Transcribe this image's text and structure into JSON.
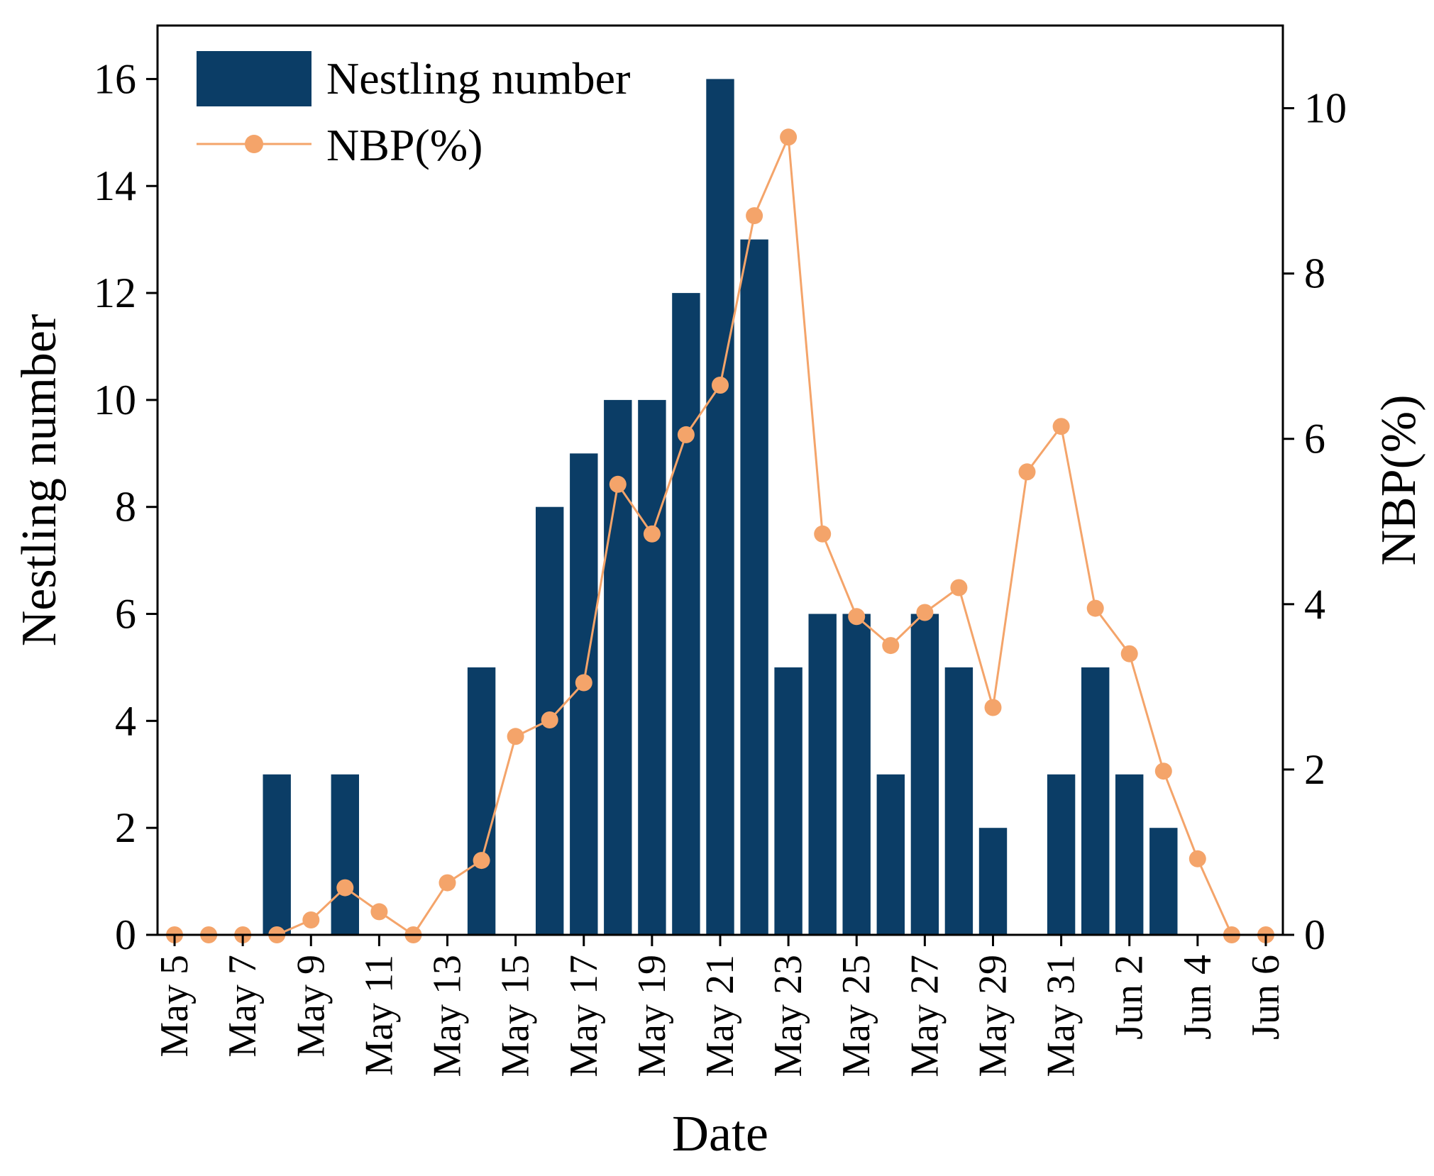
{
  "chart_data": {
    "type": "bar",
    "title": "",
    "xlabel": "Date",
    "ylabel": "Nestling number",
    "y2label": "NBP(%)",
    "ylim": [
      0,
      17
    ],
    "y2lim": [
      0,
      11
    ],
    "yticks": [
      0,
      2,
      4,
      6,
      8,
      10,
      12,
      14,
      16
    ],
    "y2ticks": [
      0,
      2,
      4,
      6,
      8,
      10
    ],
    "legend_position": "top-left",
    "categories": [
      "May 5",
      "May 6",
      "May 7",
      "May 8",
      "May 9",
      "May 10",
      "May 11",
      "May 12",
      "May 13",
      "May 14",
      "May 15",
      "May 16",
      "May 17",
      "May 18",
      "May 19",
      "May 20",
      "May 21",
      "May 22",
      "May 23",
      "May 24",
      "May 25",
      "May 26",
      "May 27",
      "May 28",
      "May 29",
      "May 30",
      "May 31",
      "Jun 1",
      "Jun 2",
      "Jun 3",
      "Jun 4",
      "Jun 5",
      "Jun 6"
    ],
    "tick_labels": [
      "May 5",
      "May 7",
      "May 9",
      "May 11",
      "May 13",
      "May 15",
      "May 17",
      "May 19",
      "May 21",
      "May 23",
      "May 25",
      "May 27",
      "May 29",
      "May 31",
      "Jun 2",
      "Jun 4",
      "Jun 6"
    ],
    "series": [
      {
        "name": "Nestling number",
        "kind": "bar",
        "axis": "left",
        "color": "#0b3d66",
        "values": [
          0,
          0,
          0,
          3,
          0,
          3,
          0,
          0,
          0,
          5,
          0,
          8,
          9,
          10,
          10,
          12,
          16,
          13,
          5,
          6,
          6,
          3,
          6,
          5,
          2,
          0,
          3,
          5,
          3,
          2,
          0,
          0,
          0
        ]
      },
      {
        "name": "NBP(%)",
        "kind": "line",
        "axis": "right",
        "color": "#f4a46a",
        "values": [
          0,
          0,
          0,
          0,
          0.18,
          0.57,
          0.28,
          0,
          0.63,
          0.9,
          2.4,
          2.6,
          3.05,
          5.45,
          4.85,
          6.05,
          6.65,
          8.7,
          9.65,
          4.85,
          3.85,
          3.5,
          3.9,
          4.2,
          2.75,
          5.6,
          6.15,
          3.95,
          3.4,
          1.98,
          0.92,
          0,
          0
        ]
      }
    ]
  }
}
